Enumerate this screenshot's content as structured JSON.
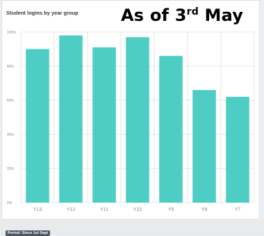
{
  "stamp": {
    "prefix": "As of 3",
    "ordinal": "rd",
    "suffix": " May"
  },
  "footer": {
    "period": "Period: Since 1st Sept"
  },
  "colors": {
    "bar": "#4ecdc4",
    "grid": "#e6e6e6",
    "axis_text": "#888888"
  },
  "chart_data": {
    "type": "bar",
    "title": "Student logins by year group",
    "categories": [
      "Y13",
      "Y12",
      "Y11",
      "Y10",
      "Y9",
      "Y8",
      "Y7"
    ],
    "values": [
      90,
      98,
      91,
      97,
      86,
      66,
      62
    ],
    "ylim": [
      0,
      100
    ],
    "yticks": [
      0,
      20,
      40,
      60,
      80,
      100
    ],
    "ytick_labels": [
      "0%",
      "20%",
      "40%",
      "60%",
      "80%",
      "100%"
    ],
    "grid": true,
    "xlabel": "",
    "ylabel": ""
  }
}
